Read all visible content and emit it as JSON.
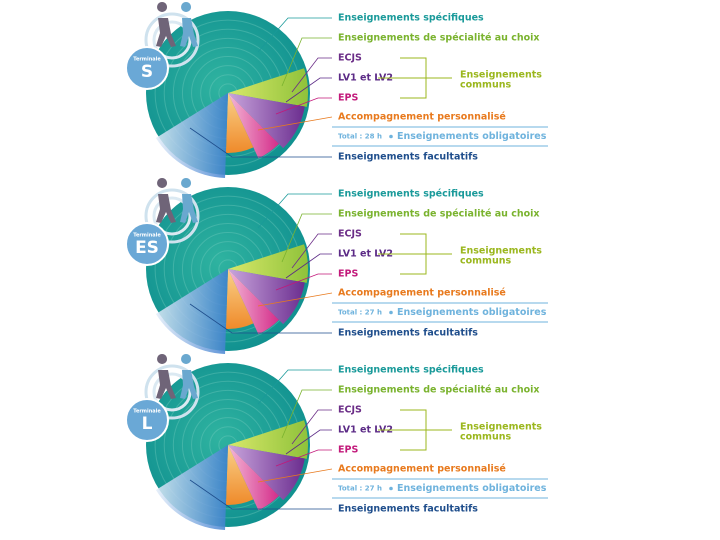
{
  "panels": [
    {
      "badge": {
        "caption": "Terminale",
        "series": "S"
      },
      "labels": {
        "specifiques": "Enseignements spécifiques",
        "specialite": "Enseignements de spécialité au choix",
        "ecjs": "ECJS",
        "langues": "LV1 et LV2",
        "eps": "EPS",
        "communs": [
          "Enseignements",
          "communs"
        ],
        "accompagnement": "Accompagnement personnalisé",
        "total": "Total : 28 h",
        "obligatoires": "Enseignements obligatoires",
        "facultatifs": "Enseignements facultatifs"
      }
    },
    {
      "badge": {
        "caption": "Terminale",
        "series": "ES"
      },
      "labels": {
        "specifiques": "Enseignements spécifiques",
        "specialite": "Enseignements de spécialité au choix",
        "ecjs": "ECJS",
        "langues": "LV1 et LV2",
        "eps": "EPS",
        "communs": [
          "Enseignements",
          "communs"
        ],
        "accompagnement": "Accompagnement personnalisé",
        "total": "Total : 27 h",
        "obligatoires": "Enseignements obligatoires",
        "facultatifs": "Enseignements facultatifs"
      }
    },
    {
      "badge": {
        "caption": "Terminale",
        "series": "L"
      },
      "labels": {
        "specifiques": "Enseignements spécifiques",
        "specialite": "Enseignements de spécialité au choix",
        "ecjs": "ECJS",
        "langues": "LV1 et LV2",
        "eps": "EPS",
        "communs": [
          "Enseignements",
          "communs"
        ],
        "accompagnement": "Accompagnement personnalisé",
        "total": "Total : 27 h",
        "obligatoires": "Enseignements obligatoires",
        "facultatifs": "Enseignements facultatifs"
      }
    }
  ]
}
